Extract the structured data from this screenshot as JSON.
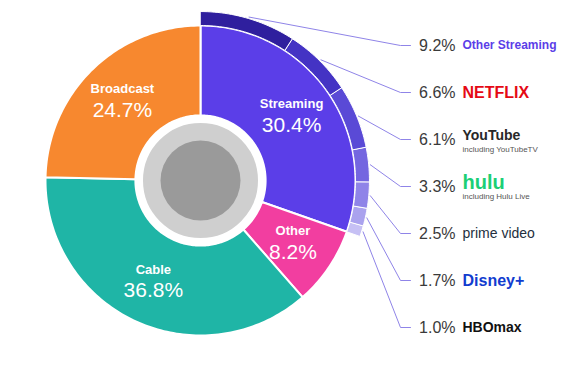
{
  "chart_data": {
    "type": "donut",
    "categories": [
      "Streaming",
      "Other",
      "Cable",
      "Broadcast"
    ],
    "values": [
      30.4,
      8.2,
      36.8,
      24.7
    ],
    "value_labels": [
      "30.4%",
      "8.2%",
      "36.8%",
      "24.7%"
    ],
    "colors": [
      "#5b3ee8",
      "#f23ea0",
      "#1fb5a6",
      "#f7882f"
    ],
    "data_labels": true,
    "breakdown": {
      "parent": "Streaming",
      "categories": [
        "Other Streaming",
        "NETFLIX",
        "YouTube",
        "hulu",
        "prime video",
        "Disney+",
        "HBOmax"
      ],
      "notes": [
        null,
        null,
        "including YouTubeTV",
        "including Hulu Live",
        null,
        null,
        null
      ],
      "values": [
        9.2,
        6.6,
        6.1,
        3.3,
        2.5,
        1.7,
        1.0
      ],
      "value_labels": [
        "9.2%",
        "6.6%",
        "6.1%",
        "3.3%",
        "2.5%",
        "1.7%",
        "1.0%"
      ],
      "colors": [
        "#2f1f9e",
        "#4433c4",
        "#5a4ad6",
        "#7466e0",
        "#8f84e8",
        "#aaa2ee",
        "#c6c0f4"
      ]
    }
  }
}
